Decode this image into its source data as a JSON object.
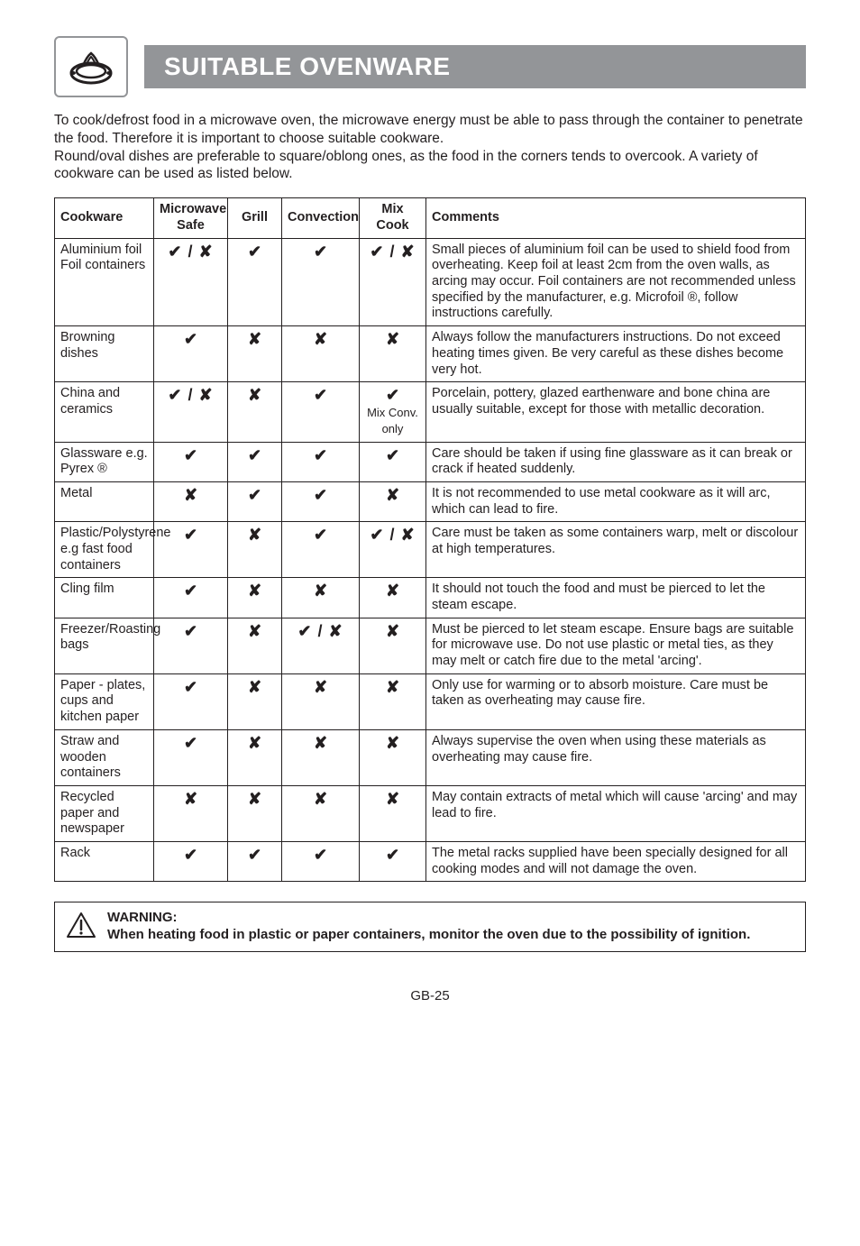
{
  "header": {
    "title": "SUITABLE OVENWARE"
  },
  "intro": "To cook/defrost food in a microwave oven, the microwave energy must be able to pass through the container to penetrate the food. Therefore it is important to choose suitable cookware.\nRound/oval dishes are preferable to square/oblong ones, as the food in the corners tends to overcook. A variety of cookware can be used as listed below.",
  "table": {
    "columns": [
      "Cookware",
      "Microwave Safe",
      "Grill",
      "Convection",
      "Mix Cook",
      "Comments"
    ],
    "marks": {
      "check": "✔",
      "cross": "✘",
      "both": "✔ / ✘"
    },
    "rows": [
      {
        "name": "Aluminium foil\nFoil containers",
        "mw": "both",
        "grill": "check",
        "conv": "check",
        "mix": "both",
        "comments": "Small pieces of aluminium foil can be used to shield food from overheating. Keep foil at least 2cm from the oven walls, as arcing may occur. Foil containers are not recommended unless specified by the manufacturer, e.g. Microfoil ®, follow instructions carefully."
      },
      {
        "name": "Browning dishes",
        "mw": "check",
        "grill": "cross",
        "conv": "cross",
        "mix": "cross",
        "comments": "Always follow the manufacturers instructions. Do not exceed heating times given. Be very careful as these dishes become very hot."
      },
      {
        "name": "China and ceramics",
        "mw": "both",
        "grill": "cross",
        "conv": "check",
        "mix": "check_mix",
        "mix_extra": "Mix Conv. only",
        "comments": "Porcelain, pottery, glazed earthenware and bone china are usually suitable, except for those with metallic decoration."
      },
      {
        "name": "Glassware e.g. Pyrex ®",
        "mw": "check",
        "grill": "check",
        "conv": "check",
        "mix": "check",
        "comments": "Care should be taken if using fine glassware as it can break or crack if heated suddenly."
      },
      {
        "name": "Metal",
        "mw": "cross",
        "grill": "check",
        "conv": "check",
        "mix": "cross",
        "comments": "It is not recommended to use metal cookware as it will arc, which can lead to fire."
      },
      {
        "name": "Plastic/Polystyrene e.g fast food containers",
        "mw": "check",
        "grill": "cross",
        "conv": "check",
        "mix": "both",
        "comments": "Care must be taken as some containers warp, melt or discolour at high temperatures."
      },
      {
        "name": "Cling film",
        "mw": "check",
        "grill": "cross",
        "conv": "cross",
        "mix": "cross",
        "comments": "It should not touch the food and must be pierced to let the steam escape."
      },
      {
        "name": "Freezer/Roasting bags",
        "mw": "check",
        "grill": "cross",
        "conv": "both",
        "mix": "cross",
        "comments": "Must be pierced to let steam escape. Ensure bags are suitable for microwave use. Do not use plastic or metal ties, as they may melt or catch fire due to the metal 'arcing'."
      },
      {
        "name": "Paper - plates, cups and kitchen paper",
        "mw": "check",
        "grill": "cross",
        "conv": "cross",
        "mix": "cross",
        "comments": "Only use for warming or to absorb moisture. Care must be taken as overheating may cause fire."
      },
      {
        "name": "Straw and wooden containers",
        "mw": "check",
        "grill": "cross",
        "conv": "cross",
        "mix": "cross",
        "comments": "Always supervise the oven when using these materials as overheating may cause fire."
      },
      {
        "name": "Recycled paper and newspaper",
        "mw": "cross",
        "grill": "cross",
        "conv": "cross",
        "mix": "cross",
        "comments": "May contain extracts of metal which will cause 'arcing' and may lead to fire."
      },
      {
        "name": "Rack",
        "mw": "check",
        "grill": "check",
        "conv": "check",
        "mix": "check",
        "comments": "The metal racks supplied have been specially designed for all cooking modes and will not damage the oven."
      }
    ]
  },
  "warning": {
    "heading": "WARNING:",
    "body": "When heating food in plastic or paper containers, monitor the oven due to the possibility of ignition."
  },
  "footer": "GB-25"
}
